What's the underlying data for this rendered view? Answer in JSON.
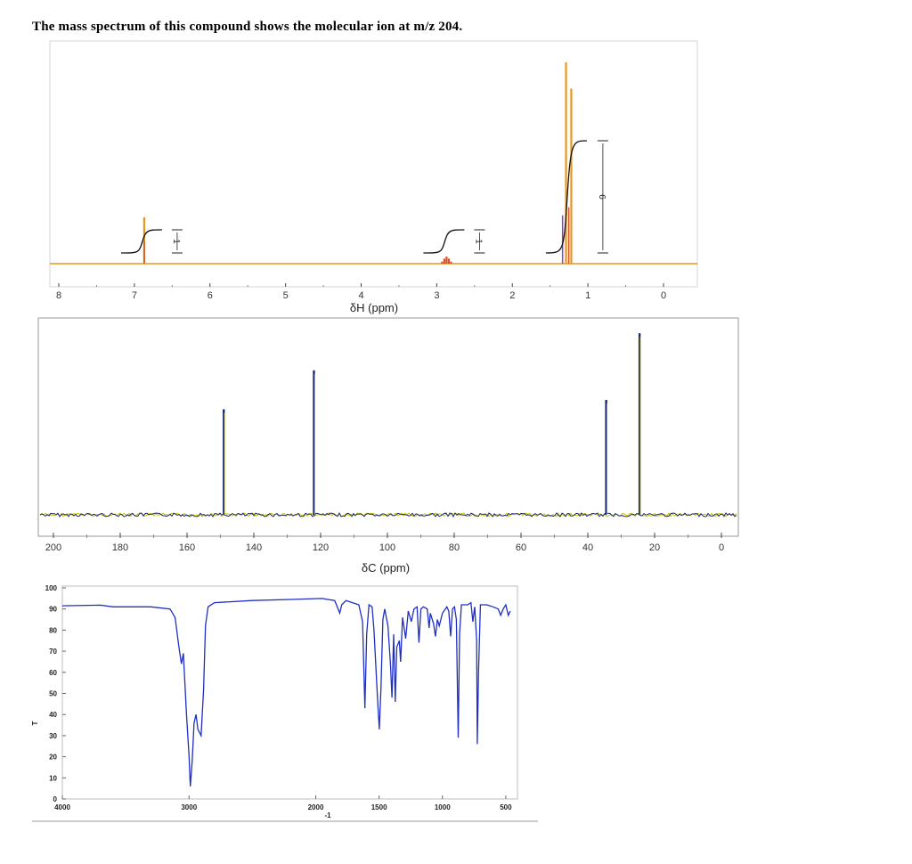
{
  "heading": {
    "text": "The mass spectrum of this compound shows the molecular ion at m/z 204."
  },
  "chart_data": [
    {
      "type": "line",
      "name": "1H NMR",
      "xlabel": "δH (ppm)",
      "xlim": [
        8,
        0
      ],
      "xticks": [
        "8",
        "7",
        "6",
        "5",
        "4",
        "3",
        "2",
        "1",
        "0"
      ],
      "peaks": [
        {
          "shift": 6.87,
          "height": 0.23,
          "mult": [
            [
              0,
              1
            ]
          ],
          "color": "#e8961e"
        },
        {
          "shift": 2.87,
          "height": 0.05,
          "mult": [
            [
              -0.12,
              0.2
            ],
            [
              -0.06,
              0.5
            ],
            [
              0,
              0.7
            ],
            [
              0.06,
              0.5
            ],
            [
              0.12,
              0.2
            ]
          ],
          "color": "#d9502a"
        },
        {
          "shift": 1.29,
          "height": 1.0,
          "mult": [
            [
              0,
              1
            ]
          ],
          "color": "#e8961e"
        },
        {
          "shift": 1.22,
          "height": 0.87,
          "mult": [
            [
              0,
              1
            ]
          ],
          "color": "#e8961e"
        }
      ],
      "integrals": [
        {
          "center": 6.87,
          "label": "1"
        },
        {
          "center": 2.87,
          "label": "1"
        },
        {
          "center": 1.25,
          "label": "6"
        }
      ],
      "integral_color": "#111111",
      "line_color": "#e8961e",
      "grid": false
    },
    {
      "type": "line",
      "name": "13C NMR",
      "xlabel": "δC (ppm)",
      "xlim": [
        200,
        0
      ],
      "xticks": [
        "200",
        "180",
        "160",
        "140",
        "120",
        "100",
        "80",
        "60",
        "40",
        "20",
        "0"
      ],
      "peaks": [
        {
          "shift": 149,
          "height": 0.57
        },
        {
          "shift": 122,
          "height": 0.78
        },
        {
          "shift": 34.5,
          "height": 0.62
        },
        {
          "shift": 24.5,
          "height": 0.98
        }
      ],
      "line_color": "#1a2a6e",
      "noise_color": "#c9c400",
      "grid": false
    },
    {
      "type": "line",
      "name": "IR",
      "xlabel": "-1",
      "ylabel": "T",
      "xlim": [
        4000,
        450
      ],
      "ylim": [
        0,
        100
      ],
      "xticks": [
        "4000",
        "3000",
        "2000",
        "1500",
        "1000",
        "500"
      ],
      "yticks": [
        "0",
        "10",
        "20",
        "30",
        "40",
        "50",
        "60",
        "70",
        "80",
        "90",
        "100"
      ],
      "line_color": "#1f2fc4",
      "points": [
        [
          4000,
          91.5
        ],
        [
          3700,
          91.8
        ],
        [
          3600,
          91
        ],
        [
          3300,
          91
        ],
        [
          3150,
          90
        ],
        [
          3110,
          86
        ],
        [
          3080,
          72
        ],
        [
          3060,
          64
        ],
        [
          3045,
          69
        ],
        [
          3020,
          40
        ],
        [
          3000,
          20
        ],
        [
          2990,
          6
        ],
        [
          2975,
          18
        ],
        [
          2960,
          36
        ],
        [
          2945,
          40
        ],
        [
          2930,
          33
        ],
        [
          2905,
          30
        ],
        [
          2885,
          52
        ],
        [
          2870,
          82
        ],
        [
          2850,
          91
        ],
        [
          2800,
          93
        ],
        [
          2500,
          94
        ],
        [
          2200,
          94.5
        ],
        [
          1950,
          95
        ],
        [
          1850,
          94
        ],
        [
          1810,
          88
        ],
        [
          1795,
          92
        ],
        [
          1760,
          94
        ],
        [
          1660,
          92
        ],
        [
          1630,
          84
        ],
        [
          1612,
          43
        ],
        [
          1598,
          78
        ],
        [
          1580,
          92
        ],
        [
          1555,
          91
        ],
        [
          1540,
          80
        ],
        [
          1510,
          45
        ],
        [
          1498,
          33
        ],
        [
          1485,
          53
        ],
        [
          1470,
          85
        ],
        [
          1455,
          90
        ],
        [
          1430,
          82
        ],
        [
          1410,
          64
        ],
        [
          1398,
          48
        ],
        [
          1385,
          78
        ],
        [
          1372,
          46
        ],
        [
          1360,
          72
        ],
        [
          1340,
          75
        ],
        [
          1330,
          65
        ],
        [
          1315,
          86
        ],
        [
          1290,
          76
        ],
        [
          1270,
          89
        ],
        [
          1245,
          84
        ],
        [
          1225,
          90
        ],
        [
          1200,
          91
        ],
        [
          1185,
          74
        ],
        [
          1170,
          90
        ],
        [
          1150,
          91
        ],
        [
          1120,
          90
        ],
        [
          1105,
          81
        ],
        [
          1095,
          88
        ],
        [
          1070,
          83
        ],
        [
          1055,
          77
        ],
        [
          1040,
          85
        ],
        [
          1025,
          82
        ],
        [
          1000,
          88
        ],
        [
          965,
          91
        ],
        [
          950,
          89
        ],
        [
          935,
          77
        ],
        [
          920,
          90
        ],
        [
          905,
          91
        ],
        [
          890,
          85
        ],
        [
          875,
          29
        ],
        [
          865,
          78
        ],
        [
          850,
          92
        ],
        [
          800,
          92
        ],
        [
          775,
          93
        ],
        [
          760,
          84
        ],
        [
          745,
          91
        ],
        [
          730,
          75
        ],
        [
          725,
          26
        ],
        [
          715,
          60
        ],
        [
          700,
          92
        ],
        [
          650,
          92
        ],
        [
          600,
          91
        ],
        [
          560,
          90
        ],
        [
          540,
          87
        ],
        [
          520,
          90
        ],
        [
          500,
          92
        ],
        [
          480,
          87
        ],
        [
          465,
          89
        ]
      ],
      "grid": false
    }
  ]
}
